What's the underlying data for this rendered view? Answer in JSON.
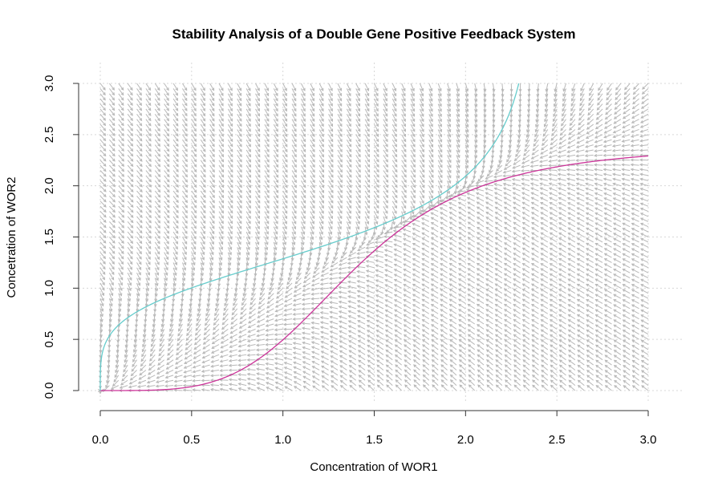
{
  "chart_data": {
    "type": "line",
    "title": "Stability Analysis of a Double Gene Positive Feedback System",
    "xlabel": "Concentration of WOR1",
    "ylabel": "Concetration of WOR2",
    "xlim": [
      0,
      3
    ],
    "ylim": [
      0,
      3
    ],
    "xticks": [
      "0.0",
      "0.5",
      "1.0",
      "1.5",
      "2.0",
      "2.5",
      "3.0"
    ],
    "yticks": [
      "0.0",
      "0.5",
      "1.0",
      "1.5",
      "2.0",
      "2.5",
      "3.0"
    ],
    "grid": true,
    "vector_field": {
      "description_source": "arrows drawn on a regular grid over the plot region",
      "step": 0.05,
      "color": "#b8b8b8"
    },
    "series": [
      {
        "color": "#cc3399",
        "x": [
          0.0,
          0.2,
          0.4,
          0.6,
          0.7,
          0.8,
          0.9,
          1.0,
          1.1,
          1.2,
          1.3,
          1.4,
          1.5,
          1.6,
          1.7,
          1.8,
          1.9,
          2.0,
          2.1,
          2.2,
          2.3,
          2.4,
          2.5,
          2.6,
          2.7,
          2.8,
          2.9,
          3.0
        ],
        "y": [
          0.0,
          0.0,
          0.003,
          0.011,
          0.023,
          0.045,
          0.09,
          0.16,
          0.28,
          0.45,
          0.67,
          0.93,
          1.22,
          1.48,
          1.7,
          1.88,
          2.02,
          2.12,
          2.2,
          2.25,
          2.29,
          2.32,
          2.34,
          2.355,
          2.365,
          2.372,
          2.377,
          2.38
        ]
      },
      {
        "color": "#66cccc",
        "x": [
          0.0,
          0.003,
          0.011,
          0.023,
          0.045,
          0.09,
          0.16,
          0.28,
          0.45,
          0.67,
          0.93,
          1.22,
          1.48,
          1.7,
          1.88,
          2.02,
          2.12,
          2.2,
          2.25,
          2.29,
          2.32,
          2.34,
          2.355,
          2.365,
          2.372,
          2.377,
          2.38,
          2.4,
          2.43,
          2.46,
          2.48
        ],
        "y": [
          0.0,
          0.4,
          0.6,
          0.7,
          0.8,
          0.9,
          1.0,
          1.1,
          1.2,
          1.3,
          1.4,
          1.5,
          1.6,
          1.7,
          1.8,
          1.9,
          2.0,
          2.1,
          2.2,
          2.3,
          2.4,
          2.5,
          2.6,
          2.7,
          2.8,
          2.9,
          3.0,
          2.45,
          2.65,
          2.85,
          3.0
        ]
      }
    ]
  }
}
